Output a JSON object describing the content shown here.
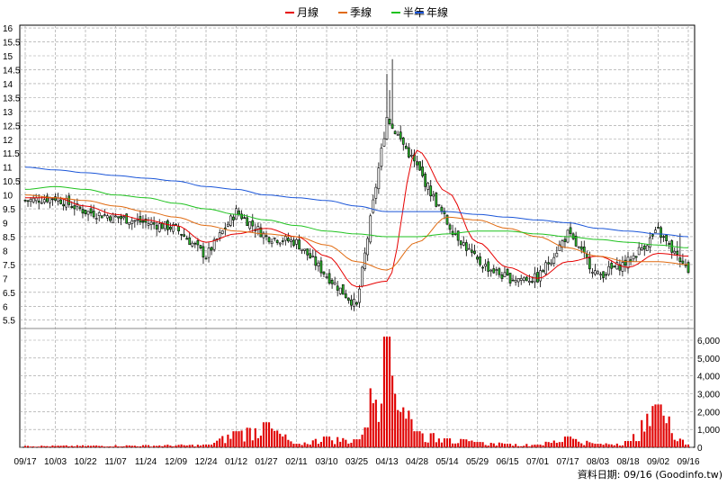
{
  "legend": [
    {
      "label": "月線",
      "color": "#e60000"
    },
    {
      "label": "季線",
      "color": "#e06a10"
    },
    {
      "label": "半年",
      "color": "#1fc21f"
    },
    {
      "label": "年線",
      "color": "#1a55d8"
    }
  ],
  "source_note": "資料日期: 09/16 (Goodinfo.tw)",
  "chart_data": [
    {
      "type": "candlestick",
      "y_ticks": [
        "16",
        "15.5",
        "15",
        "14.5",
        "14",
        "13.5",
        "13",
        "12.5",
        "12",
        "11.5",
        "11",
        "10.5",
        "10",
        "9.5",
        "9",
        "8.5",
        "8",
        "7.5",
        "7",
        "6.5",
        "6",
        "5.5"
      ],
      "ylim": [
        5.2,
        16.1
      ],
      "x_tick_labels": [
        "09/17",
        "10/03",
        "10/22",
        "11/07",
        "11/24",
        "12/09",
        "12/24",
        "01/12",
        "01/27",
        "02/11",
        "03/10",
        "03/25",
        "04/13",
        "04/28",
        "05/14",
        "05/29",
        "06/15",
        "07/01",
        "07/17",
        "08/03",
        "08/18",
        "09/02",
        "09/16"
      ],
      "grid": true,
      "legend_position": "top",
      "price_keypoints": [
        {
          "x": "09/17",
          "close": 9.8
        },
        {
          "x": "10/03",
          "close": 9.9
        },
        {
          "x": "10/22",
          "close": 9.4
        },
        {
          "x": "11/07",
          "close": 9.2
        },
        {
          "x": "11/24",
          "close": 9.0
        },
        {
          "x": "12/09",
          "close": 8.8
        },
        {
          "x": "12/24",
          "close": 7.8
        },
        {
          "x": "01/12",
          "close": 9.4
        },
        {
          "x": "01/27",
          "close": 8.5
        },
        {
          "x": "02/11",
          "close": 8.3
        },
        {
          "x": "03/10",
          "close": 7.1
        },
        {
          "x": "03/25",
          "close": 6.0
        },
        {
          "x": "04/13",
          "close": 12.8
        },
        {
          "x": "04/28",
          "close": 11.0
        },
        {
          "x": "05/14",
          "close": 9.0
        },
        {
          "x": "05/29",
          "close": 7.6
        },
        {
          "x": "06/15",
          "close": 7.0
        },
        {
          "x": "07/01",
          "close": 7.0
        },
        {
          "x": "07/17",
          "close": 8.6
        },
        {
          "x": "08/03",
          "close": 7.1
        },
        {
          "x": "08/18",
          "close": 7.6
        },
        {
          "x": "09/02",
          "close": 8.7
        },
        {
          "x": "09/16",
          "close": 7.2
        }
      ],
      "moving_averages": [
        {
          "name": "月線",
          "values": [
            9.9,
            9.9,
            9.6,
            9.3,
            9.1,
            8.9,
            8.3,
            8.6,
            8.8,
            8.5,
            7.8,
            6.7,
            6.9,
            11.6,
            10.1,
            8.3,
            7.4,
            7.0,
            7.6,
            7.8,
            7.4,
            7.9,
            7.8
          ]
        },
        {
          "name": "季線",
          "values": [
            10.0,
            9.9,
            9.8,
            9.6,
            9.4,
            9.2,
            8.9,
            8.7,
            8.6,
            8.5,
            8.2,
            7.6,
            7.3,
            8.3,
            9.2,
            9.1,
            8.8,
            8.5,
            8.1,
            7.8,
            7.6,
            7.6,
            7.5
          ]
        },
        {
          "name": "半年",
          "values": [
            10.2,
            10.3,
            10.2,
            10.0,
            9.9,
            9.7,
            9.5,
            9.3,
            9.1,
            8.9,
            8.7,
            8.6,
            8.5,
            8.5,
            8.6,
            8.7,
            8.7,
            8.6,
            8.5,
            8.4,
            8.3,
            8.2,
            8.1
          ]
        },
        {
          "name": "年線",
          "values": [
            11.0,
            10.9,
            10.8,
            10.7,
            10.6,
            10.5,
            10.3,
            10.2,
            10.0,
            9.9,
            9.8,
            9.6,
            9.4,
            9.4,
            9.4,
            9.3,
            9.2,
            9.1,
            9.0,
            8.8,
            8.7,
            8.6,
            8.5
          ]
        }
      ]
    },
    {
      "type": "bar",
      "y_ticks": [
        "6,000",
        "5,000",
        "4,000",
        "3,000",
        "2,000",
        "1,000",
        "0"
      ],
      "ylim": [
        0,
        6000
      ],
      "volume_keypoints": [
        {
          "x": "09/17",
          "value": 80
        },
        {
          "x": "11/24",
          "value": 120
        },
        {
          "x": "12/24",
          "value": 150
        },
        {
          "x": "01/12",
          "value": 900
        },
        {
          "x": "01/27",
          "value": 1400
        },
        {
          "x": "02/11",
          "value": 200
        },
        {
          "x": "03/10",
          "value": 600
        },
        {
          "x": "03/25",
          "value": 450
        },
        {
          "x": "04/13",
          "value": 6200
        },
        {
          "x": "04/28",
          "value": 900
        },
        {
          "x": "05/14",
          "value": 500
        },
        {
          "x": "05/29",
          "value": 300
        },
        {
          "x": "06/15",
          "value": 200
        },
        {
          "x": "07/01",
          "value": 150
        },
        {
          "x": "07/17",
          "value": 600
        },
        {
          "x": "08/03",
          "value": 200
        },
        {
          "x": "08/18",
          "value": 350
        },
        {
          "x": "09/02",
          "value": 2400
        },
        {
          "x": "09/16",
          "value": 150
        }
      ]
    }
  ]
}
